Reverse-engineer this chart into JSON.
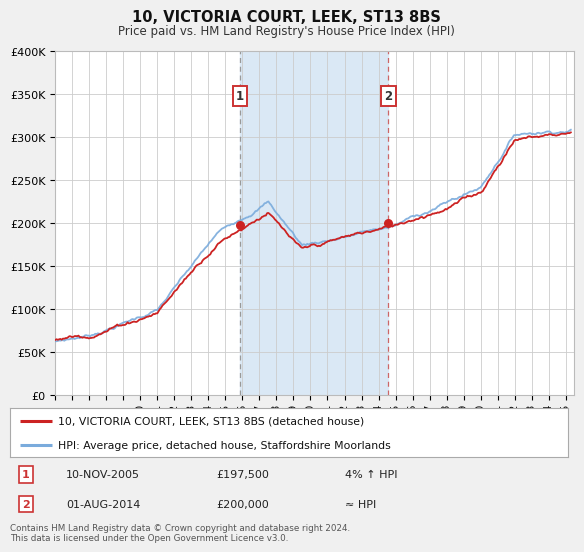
{
  "title_line1": "10, VICTORIA COURT, LEEK, ST13 8BS",
  "title_line2": "Price paid vs. HM Land Registry's House Price Index (HPI)",
  "ylim": [
    0,
    400000
  ],
  "yticks": [
    0,
    50000,
    100000,
    150000,
    200000,
    250000,
    300000,
    350000,
    400000
  ],
  "ytick_labels": [
    "£0",
    "£50K",
    "£100K",
    "£150K",
    "£200K",
    "£250K",
    "£300K",
    "£350K",
    "£400K"
  ],
  "xlim_start": 1995.0,
  "xlim_end": 2025.5,
  "xtick_years": [
    1995,
    1996,
    1997,
    1998,
    1999,
    2000,
    2001,
    2002,
    2003,
    2004,
    2005,
    2006,
    2007,
    2008,
    2009,
    2010,
    2011,
    2012,
    2013,
    2014,
    2015,
    2016,
    2017,
    2018,
    2019,
    2020,
    2021,
    2022,
    2023,
    2024,
    2025
  ],
  "background_color": "#f0f0f0",
  "plot_bg_color": "#ffffff",
  "grid_color": "#cccccc",
  "hpi_line_color": "#7aabdc",
  "price_line_color": "#cc2222",
  "marker_color": "#cc2222",
  "highlight_bg_color": "#dae8f5",
  "sale1_x": 2005.86,
  "sale1_y": 197500,
  "sale2_x": 2014.58,
  "sale2_y": 200000,
  "vline1_x": 2005.86,
  "vline2_x": 2014.58,
  "legend_price_label": "10, VICTORIA COURT, LEEK, ST13 8BS (detached house)",
  "legend_hpi_label": "HPI: Average price, detached house, Staffordshire Moorlands",
  "table_row1_num": "1",
  "table_row1_date": "10-NOV-2005",
  "table_row1_price": "£197,500",
  "table_row1_rel": "4% ↑ HPI",
  "table_row2_num": "2",
  "table_row2_date": "01-AUG-2014",
  "table_row2_price": "£200,000",
  "table_row2_rel": "≈ HPI",
  "footnote": "Contains HM Land Registry data © Crown copyright and database right 2024.\nThis data is licensed under the Open Government Licence v3.0."
}
